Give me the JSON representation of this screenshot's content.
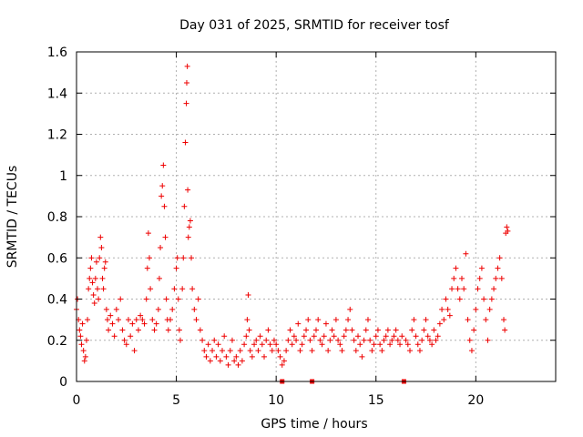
{
  "chart_data": {
    "type": "scatter",
    "title": "Day 031 of 2025, SRMTID for receiver tosf",
    "xlabel": "GPS time / hours",
    "ylabel": "SRMTID / TECUs",
    "xlim": [
      0,
      24
    ],
    "ylim": [
      0,
      1.6
    ],
    "xticks": [
      0,
      5,
      10,
      15,
      20
    ],
    "xtick_labels": [
      "0",
      "5",
      "10",
      "15",
      "20"
    ],
    "yticks": [
      0,
      0.2,
      0.4,
      0.6,
      0.8,
      1,
      1.2,
      1.4,
      1.6
    ],
    "ytick_labels": [
      "0",
      "0.2",
      "0.4",
      "0.6",
      "0.8",
      "1",
      "1.2",
      "1.4",
      "1.6"
    ],
    "grid": true,
    "marker": "+",
    "marker_color": "#ee0000",
    "series": [
      {
        "name": "SRMTID",
        "points": [
          [
            0.0,
            0.35
          ],
          [
            0.05,
            0.4
          ],
          [
            0.1,
            0.3
          ],
          [
            0.15,
            0.25
          ],
          [
            0.2,
            0.22
          ],
          [
            0.25,
            0.18
          ],
          [
            0.3,
            0.28
          ],
          [
            0.35,
            0.15
          ],
          [
            0.4,
            0.1
          ],
          [
            0.45,
            0.12
          ],
          [
            0.5,
            0.2
          ],
          [
            0.55,
            0.3
          ],
          [
            0.6,
            0.45
          ],
          [
            0.65,
            0.5
          ],
          [
            0.7,
            0.55
          ],
          [
            0.75,
            0.6
          ],
          [
            0.8,
            0.48
          ],
          [
            0.85,
            0.42
          ],
          [
            0.9,
            0.38
          ],
          [
            0.95,
            0.5
          ],
          [
            1.0,
            0.58
          ],
          [
            1.05,
            0.45
          ],
          [
            1.1,
            0.4
          ],
          [
            1.15,
            0.6
          ],
          [
            1.2,
            0.7
          ],
          [
            1.25,
            0.65
          ],
          [
            1.3,
            0.5
          ],
          [
            1.35,
            0.45
          ],
          [
            1.4,
            0.55
          ],
          [
            1.45,
            0.58
          ],
          [
            1.5,
            0.35
          ],
          [
            1.55,
            0.3
          ],
          [
            1.6,
            0.25
          ],
          [
            1.7,
            0.32
          ],
          [
            1.8,
            0.28
          ],
          [
            1.9,
            0.22
          ],
          [
            2.0,
            0.35
          ],
          [
            2.1,
            0.3
          ],
          [
            2.2,
            0.4
          ],
          [
            2.3,
            0.25
          ],
          [
            2.4,
            0.2
          ],
          [
            2.5,
            0.18
          ],
          [
            2.6,
            0.3
          ],
          [
            2.7,
            0.22
          ],
          [
            2.8,
            0.28
          ],
          [
            2.9,
            0.15
          ],
          [
            3.0,
            0.3
          ],
          [
            3.1,
            0.25
          ],
          [
            3.2,
            0.32
          ],
          [
            3.3,
            0.3
          ],
          [
            3.4,
            0.28
          ],
          [
            3.5,
            0.4
          ],
          [
            3.55,
            0.55
          ],
          [
            3.6,
            0.72
          ],
          [
            3.65,
            0.6
          ],
          [
            3.7,
            0.45
          ],
          [
            3.8,
            0.3
          ],
          [
            3.9,
            0.25
          ],
          [
            4.0,
            0.28
          ],
          [
            4.1,
            0.35
          ],
          [
            4.15,
            0.5
          ],
          [
            4.2,
            0.65
          ],
          [
            4.25,
            0.9
          ],
          [
            4.3,
            0.95
          ],
          [
            4.35,
            1.05
          ],
          [
            4.4,
            0.85
          ],
          [
            4.45,
            0.7
          ],
          [
            4.5,
            0.4
          ],
          [
            4.55,
            0.3
          ],
          [
            4.6,
            0.25
          ],
          [
            4.7,
            0.3
          ],
          [
            4.8,
            0.35
          ],
          [
            4.9,
            0.45
          ],
          [
            5.0,
            0.55
          ],
          [
            5.05,
            0.6
          ],
          [
            5.1,
            0.4
          ],
          [
            5.15,
            0.25
          ],
          [
            5.2,
            0.2
          ],
          [
            5.3,
            0.45
          ],
          [
            5.35,
            0.6
          ],
          [
            5.4,
            0.85
          ],
          [
            5.45,
            1.16
          ],
          [
            5.5,
            1.35
          ],
          [
            5.52,
            1.45
          ],
          [
            5.55,
            1.53
          ],
          [
            5.57,
            0.93
          ],
          [
            5.6,
            0.7
          ],
          [
            5.65,
            0.75
          ],
          [
            5.7,
            0.78
          ],
          [
            5.75,
            0.6
          ],
          [
            5.8,
            0.45
          ],
          [
            5.9,
            0.35
          ],
          [
            6.0,
            0.3
          ],
          [
            6.1,
            0.4
          ],
          [
            6.2,
            0.25
          ],
          [
            6.3,
            0.2
          ],
          [
            6.4,
            0.15
          ],
          [
            6.5,
            0.12
          ],
          [
            6.6,
            0.18
          ],
          [
            6.7,
            0.1
          ],
          [
            6.8,
            0.15
          ],
          [
            6.9,
            0.2
          ],
          [
            7.0,
            0.12
          ],
          [
            7.1,
            0.18
          ],
          [
            7.2,
            0.1
          ],
          [
            7.3,
            0.15
          ],
          [
            7.4,
            0.22
          ],
          [
            7.5,
            0.12
          ],
          [
            7.6,
            0.08
          ],
          [
            7.7,
            0.15
          ],
          [
            7.8,
            0.2
          ],
          [
            7.9,
            0.1
          ],
          [
            8.0,
            0.12
          ],
          [
            8.1,
            0.08
          ],
          [
            8.2,
            0.15
          ],
          [
            8.3,
            0.1
          ],
          [
            8.4,
            0.18
          ],
          [
            8.5,
            0.22
          ],
          [
            8.55,
            0.3
          ],
          [
            8.6,
            0.42
          ],
          [
            8.65,
            0.25
          ],
          [
            8.7,
            0.15
          ],
          [
            8.8,
            0.12
          ],
          [
            8.9,
            0.18
          ],
          [
            9.0,
            0.2
          ],
          [
            9.1,
            0.15
          ],
          [
            9.2,
            0.22
          ],
          [
            9.3,
            0.18
          ],
          [
            9.4,
            0.12
          ],
          [
            9.5,
            0.2
          ],
          [
            9.6,
            0.25
          ],
          [
            9.7,
            0.18
          ],
          [
            9.8,
            0.15
          ],
          [
            9.9,
            0.2
          ],
          [
            10.0,
            0.18
          ],
          [
            10.1,
            0.15
          ],
          [
            10.2,
            0.12
          ],
          [
            10.3,
            0.08
          ],
          [
            10.4,
            0.1
          ],
          [
            10.5,
            0.15
          ],
          [
            10.6,
            0.2
          ],
          [
            10.7,
            0.25
          ],
          [
            10.8,
            0.18
          ],
          [
            10.9,
            0.22
          ],
          [
            11.0,
            0.2
          ],
          [
            11.1,
            0.28
          ],
          [
            11.2,
            0.15
          ],
          [
            11.3,
            0.18
          ],
          [
            11.4,
            0.22
          ],
          [
            11.5,
            0.25
          ],
          [
            11.6,
            0.3
          ],
          [
            11.7,
            0.2
          ],
          [
            11.8,
            0.15
          ],
          [
            11.9,
            0.22
          ],
          [
            12.0,
            0.25
          ],
          [
            12.1,
            0.3
          ],
          [
            12.2,
            0.2
          ],
          [
            12.3,
            0.18
          ],
          [
            12.4,
            0.22
          ],
          [
            12.5,
            0.28
          ],
          [
            12.6,
            0.15
          ],
          [
            12.7,
            0.2
          ],
          [
            12.8,
            0.25
          ],
          [
            12.9,
            0.22
          ],
          [
            13.0,
            0.3
          ],
          [
            13.1,
            0.2
          ],
          [
            13.2,
            0.18
          ],
          [
            13.3,
            0.15
          ],
          [
            13.4,
            0.22
          ],
          [
            13.5,
            0.25
          ],
          [
            13.6,
            0.3
          ],
          [
            13.7,
            0.35
          ],
          [
            13.8,
            0.25
          ],
          [
            13.9,
            0.2
          ],
          [
            14.0,
            0.15
          ],
          [
            14.1,
            0.22
          ],
          [
            14.2,
            0.18
          ],
          [
            14.3,
            0.12
          ],
          [
            14.4,
            0.2
          ],
          [
            14.5,
            0.25
          ],
          [
            14.6,
            0.3
          ],
          [
            14.7,
            0.2
          ],
          [
            14.8,
            0.15
          ],
          [
            14.9,
            0.18
          ],
          [
            15.0,
            0.22
          ],
          [
            15.1,
            0.25
          ],
          [
            15.2,
            0.18
          ],
          [
            15.3,
            0.15
          ],
          [
            15.4,
            0.2
          ],
          [
            15.5,
            0.22
          ],
          [
            15.6,
            0.25
          ],
          [
            15.7,
            0.18
          ],
          [
            15.8,
            0.2
          ],
          [
            15.9,
            0.22
          ],
          [
            16.0,
            0.25
          ],
          [
            16.1,
            0.2
          ],
          [
            16.2,
            0.18
          ],
          [
            16.3,
            0.22
          ],
          [
            16.5,
            0.2
          ],
          [
            16.6,
            0.18
          ],
          [
            16.7,
            0.15
          ],
          [
            16.8,
            0.25
          ],
          [
            16.9,
            0.3
          ],
          [
            17.0,
            0.22
          ],
          [
            17.1,
            0.18
          ],
          [
            17.2,
            0.15
          ],
          [
            17.3,
            0.2
          ],
          [
            17.4,
            0.25
          ],
          [
            17.5,
            0.3
          ],
          [
            17.6,
            0.22
          ],
          [
            17.7,
            0.2
          ],
          [
            17.8,
            0.18
          ],
          [
            17.9,
            0.25
          ],
          [
            18.0,
            0.2
          ],
          [
            18.1,
            0.22
          ],
          [
            18.2,
            0.28
          ],
          [
            18.3,
            0.35
          ],
          [
            18.4,
            0.3
          ],
          [
            18.5,
            0.4
          ],
          [
            18.6,
            0.35
          ],
          [
            18.7,
            0.32
          ],
          [
            18.8,
            0.45
          ],
          [
            18.9,
            0.5
          ],
          [
            19.0,
            0.55
          ],
          [
            19.1,
            0.45
          ],
          [
            19.2,
            0.4
          ],
          [
            19.3,
            0.5
          ],
          [
            19.4,
            0.45
          ],
          [
            19.5,
            0.62
          ],
          [
            19.6,
            0.3
          ],
          [
            19.7,
            0.2
          ],
          [
            19.8,
            0.15
          ],
          [
            19.9,
            0.25
          ],
          [
            20.0,
            0.35
          ],
          [
            20.1,
            0.45
          ],
          [
            20.2,
            0.5
          ],
          [
            20.3,
            0.55
          ],
          [
            20.4,
            0.4
          ],
          [
            20.5,
            0.3
          ],
          [
            20.6,
            0.2
          ],
          [
            20.7,
            0.35
          ],
          [
            20.8,
            0.4
          ],
          [
            20.9,
            0.45
          ],
          [
            21.0,
            0.5
          ],
          [
            21.1,
            0.55
          ],
          [
            21.2,
            0.6
          ],
          [
            21.3,
            0.5
          ],
          [
            21.4,
            0.3
          ],
          [
            21.45,
            0.25
          ],
          [
            21.5,
            0.72
          ],
          [
            21.55,
            0.75
          ],
          [
            21.6,
            0.73
          ]
        ]
      }
    ],
    "x_axis_markers": [
      10.3,
      11.8,
      16.4
    ]
  }
}
